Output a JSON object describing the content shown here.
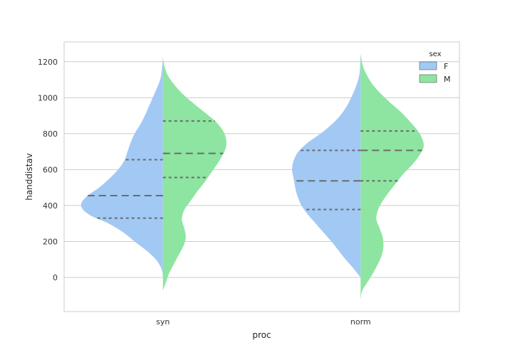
{
  "chart_data": {
    "type": "violin",
    "split": true,
    "categories": [
      "syn",
      "norm"
    ],
    "xlabel": "proc",
    "ylabel": "handdistav",
    "ylim": [
      -190,
      1310
    ],
    "yticks": [
      0,
      200,
      400,
      600,
      800,
      1000,
      1200
    ],
    "grid": true,
    "legend": {
      "title": "sex",
      "placement": "top-right"
    },
    "series": [
      {
        "name": "F",
        "color": "#a1c9f4",
        "violins": [
          {
            "category": "syn",
            "range": [
              0,
              1225
            ],
            "quartiles": [
              330,
              455,
              655
            ],
            "density": [
              [
                0,
                0
              ],
              [
                50,
                0.04
              ],
              [
                100,
                0.18
              ],
              [
                150,
                0.42
              ],
              [
                200,
                0.72
              ],
              [
                250,
                1.0
              ],
              [
                300,
                1.38
              ],
              [
                350,
                1.88
              ],
              [
                400,
                2.08
              ],
              [
                450,
                1.94
              ],
              [
                500,
                1.62
              ],
              [
                550,
                1.36
              ],
              [
                600,
                1.14
              ],
              [
                650,
                0.98
              ],
              [
                700,
                0.9
              ],
              [
                750,
                0.82
              ],
              [
                800,
                0.72
              ],
              [
                850,
                0.58
              ],
              [
                900,
                0.46
              ],
              [
                950,
                0.36
              ],
              [
                1000,
                0.26
              ],
              [
                1050,
                0.16
              ],
              [
                1100,
                0.07
              ],
              [
                1150,
                0.03
              ],
              [
                1225,
                0
              ]
            ]
          },
          {
            "category": "norm",
            "range": [
              0,
              1245
            ],
            "quartiles": [
              378,
              537,
              707
            ],
            "density": [
              [
                0,
                0
              ],
              [
                50,
                0.18
              ],
              [
                100,
                0.38
              ],
              [
                150,
                0.56
              ],
              [
                200,
                0.74
              ],
              [
                250,
                0.94
              ],
              [
                300,
                1.14
              ],
              [
                350,
                1.34
              ],
              [
                400,
                1.5
              ],
              [
                450,
                1.6
              ],
              [
                500,
                1.66
              ],
              [
                550,
                1.7
              ],
              [
                600,
                1.74
              ],
              [
                650,
                1.7
              ],
              [
                700,
                1.58
              ],
              [
                750,
                1.34
              ],
              [
                800,
                1.02
              ],
              [
                850,
                0.74
              ],
              [
                900,
                0.52
              ],
              [
                950,
                0.36
              ],
              [
                1000,
                0.24
              ],
              [
                1050,
                0.14
              ],
              [
                1100,
                0.06
              ],
              [
                1150,
                0.02
              ],
              [
                1245,
                0
              ]
            ]
          }
        ]
      },
      {
        "name": "M",
        "color": "#8de5a1",
        "violins": [
          {
            "category": "syn",
            "range": [
              -75,
              1225
            ],
            "quartiles": [
              556,
              690,
              870
            ],
            "density": [
              [
                -75,
                0
              ],
              [
                -25,
                0.08
              ],
              [
                25,
                0.16
              ],
              [
                75,
                0.28
              ],
              [
                125,
                0.4
              ],
              [
                175,
                0.52
              ],
              [
                225,
                0.58
              ],
              [
                275,
                0.54
              ],
              [
                325,
                0.48
              ],
              [
                375,
                0.54
              ],
              [
                425,
                0.7
              ],
              [
                475,
                0.86
              ],
              [
                525,
                1.04
              ],
              [
                575,
                1.2
              ],
              [
                625,
                1.36
              ],
              [
                675,
                1.5
              ],
              [
                725,
                1.6
              ],
              [
                775,
                1.6
              ],
              [
                825,
                1.5
              ],
              [
                875,
                1.3
              ],
              [
                925,
                1.02
              ],
              [
                975,
                0.74
              ],
              [
                1025,
                0.48
              ],
              [
                1075,
                0.28
              ],
              [
                1125,
                0.12
              ],
              [
                1175,
                0.04
              ],
              [
                1225,
                0
              ]
            ]
          },
          {
            "category": "norm",
            "range": [
              -125,
              1245
            ],
            "quartiles": [
              537,
              707,
              815
            ],
            "density": [
              [
                -125,
                0
              ],
              [
                -75,
                0.04
              ],
              [
                -25,
                0.18
              ],
              [
                25,
                0.32
              ],
              [
                75,
                0.44
              ],
              [
                125,
                0.54
              ],
              [
                175,
                0.58
              ],
              [
                225,
                0.56
              ],
              [
                275,
                0.48
              ],
              [
                325,
                0.4
              ],
              [
                375,
                0.44
              ],
              [
                425,
                0.56
              ],
              [
                475,
                0.72
              ],
              [
                525,
                0.9
              ],
              [
                575,
                1.08
              ],
              [
                625,
                1.3
              ],
              [
                675,
                1.48
              ],
              [
                725,
                1.6
              ],
              [
                775,
                1.56
              ],
              [
                825,
                1.42
              ],
              [
                875,
                1.22
              ],
              [
                925,
                1.0
              ],
              [
                975,
                0.74
              ],
              [
                1025,
                0.5
              ],
              [
                1075,
                0.3
              ],
              [
                1125,
                0.16
              ],
              [
                1175,
                0.06
              ],
              [
                1245,
                0
              ]
            ]
          }
        ]
      }
    ]
  }
}
